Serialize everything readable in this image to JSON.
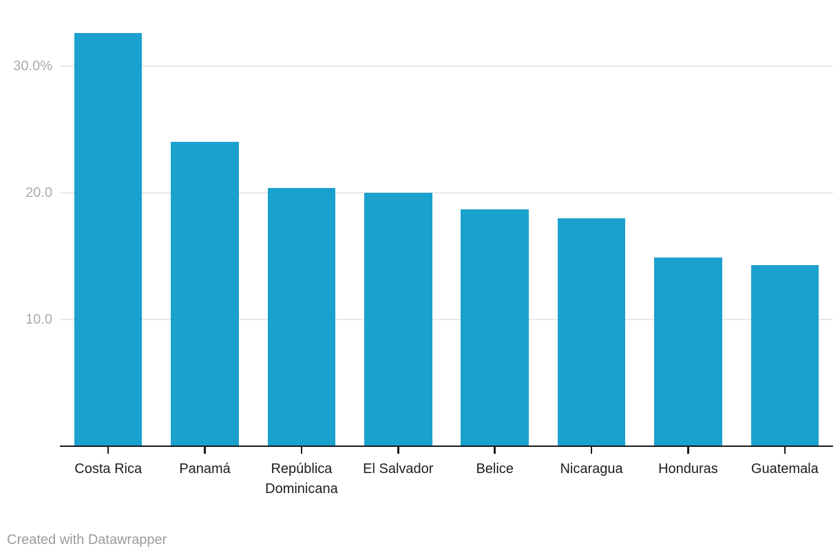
{
  "chart_data": {
    "type": "bar",
    "title": "",
    "xlabel": "",
    "ylabel": "",
    "unit": "%",
    "categories": [
      "Costa Rica",
      "Panamá",
      "República Dominicana",
      "El Salvador",
      "Belice",
      "Nicaragua",
      "Honduras",
      "Guatemala"
    ],
    "values": [
      32.6,
      24.0,
      20.4,
      20.0,
      18.7,
      18.0,
      14.9,
      14.3
    ],
    "ylim": [
      0,
      35.2
    ],
    "yticks": [
      {
        "value": 10,
        "label": "10.0"
      },
      {
        "value": 20,
        "label": "20.0"
      },
      {
        "value": 30,
        "label": "30.0%"
      }
    ],
    "grid": true,
    "legend": "none",
    "bar_color": "#1ba1cd"
  },
  "footer": {
    "credit": "Created with Datawrapper"
  },
  "colors": {
    "bar": "#1ba1cd",
    "grid": "#e8e8e8",
    "axis": "#1a1a1e",
    "y_tick_label": "#ababab",
    "category_label": "#1d1d1f",
    "footer_text": "#9b9b9b",
    "background": "#ffffff"
  }
}
